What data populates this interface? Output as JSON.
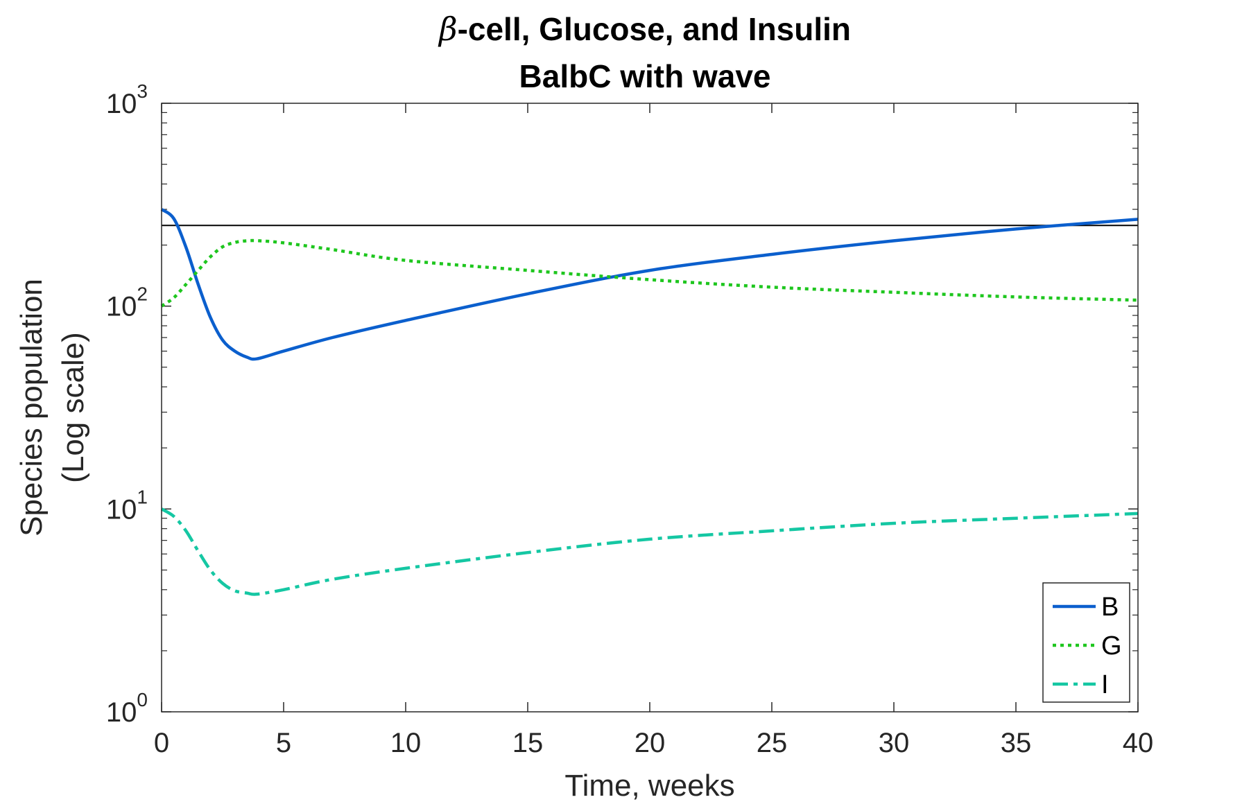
{
  "chart_data": {
    "type": "line",
    "title": [
      "-cell, Glucose, and Insulin",
      "BalbC with wave"
    ],
    "title_symbol": "β",
    "xlabel": "Time, weeks",
    "ylabel": [
      "Species population",
      "(Log scale)"
    ],
    "xlim": [
      0,
      40
    ],
    "ylim": [
      1,
      1000
    ],
    "yscale": "log",
    "xticks": [
      0,
      5,
      10,
      15,
      20,
      25,
      30,
      35,
      40
    ],
    "yticks": [
      {
        "base": "10",
        "exp": "0"
      },
      {
        "base": "10",
        "exp": "1"
      },
      {
        "base": "10",
        "exp": "2"
      },
      {
        "base": "10",
        "exp": "3"
      }
    ],
    "grid": false,
    "legend_position": "bottom-right",
    "reference_line": {
      "y": 250,
      "color": "#000000"
    },
    "series": [
      {
        "name": "B",
        "color": "#0B5FCD",
        "style": "solid",
        "x": [
          0,
          0.5,
          1,
          1.5,
          2,
          2.5,
          3,
          3.5,
          3.9,
          5,
          7,
          10,
          15,
          20,
          25,
          30,
          35,
          40
        ],
        "y": [
          300,
          270,
          195,
          128,
          88,
          68,
          60,
          56,
          55,
          60,
          70,
          85,
          115,
          150,
          180,
          210,
          240,
          268
        ]
      },
      {
        "name": "G",
        "color": "#1EC61E",
        "style": "dotted",
        "x": [
          0,
          0.5,
          1,
          1.5,
          2,
          2.5,
          3,
          3.5,
          4,
          5,
          7,
          10,
          15,
          20,
          25,
          30,
          35,
          40
        ],
        "y": [
          100,
          110,
          128,
          150,
          175,
          196,
          206,
          210,
          210,
          205,
          190,
          168,
          150,
          135,
          124,
          117,
          111,
          107
        ]
      },
      {
        "name": "I",
        "color": "#15C7A3",
        "style": "dashdot",
        "x": [
          0,
          0.5,
          1,
          1.5,
          2,
          2.5,
          3,
          3.5,
          3.9,
          5,
          7,
          10,
          15,
          20,
          25,
          30,
          35,
          40
        ],
        "y": [
          10,
          9.2,
          7.8,
          6.2,
          5.0,
          4.3,
          3.95,
          3.85,
          3.8,
          4.0,
          4.5,
          5.1,
          6.1,
          7.1,
          7.8,
          8.5,
          9.0,
          9.5
        ]
      }
    ]
  }
}
